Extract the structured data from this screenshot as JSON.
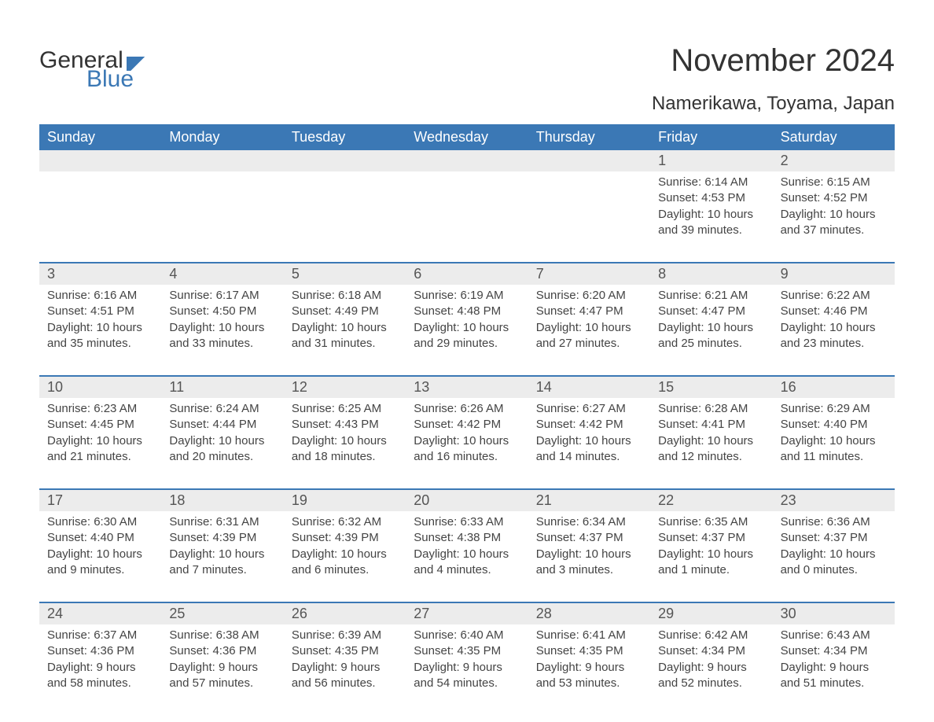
{
  "logo": {
    "part1": "General",
    "part2": "Blue"
  },
  "title": "November 2024",
  "location": "Namerikawa, Toyama, Japan",
  "weekdays": [
    "Sunday",
    "Monday",
    "Tuesday",
    "Wednesday",
    "Thursday",
    "Friday",
    "Saturday"
  ],
  "colors": {
    "header_bg": "#3b78b5",
    "header_text": "#ffffff",
    "daynum_bg": "#ececec",
    "border": "#3b78b5",
    "body_bg": "#ffffff",
    "text": "#333333"
  },
  "weeks": [
    [
      {
        "num": "",
        "lines": []
      },
      {
        "num": "",
        "lines": []
      },
      {
        "num": "",
        "lines": []
      },
      {
        "num": "",
        "lines": []
      },
      {
        "num": "",
        "lines": []
      },
      {
        "num": "1",
        "lines": [
          "Sunrise: 6:14 AM",
          "Sunset: 4:53 PM",
          "Daylight: 10 hours",
          "and 39 minutes."
        ]
      },
      {
        "num": "2",
        "lines": [
          "Sunrise: 6:15 AM",
          "Sunset: 4:52 PM",
          "Daylight: 10 hours",
          "and 37 minutes."
        ]
      }
    ],
    [
      {
        "num": "3",
        "lines": [
          "Sunrise: 6:16 AM",
          "Sunset: 4:51 PM",
          "Daylight: 10 hours",
          "and 35 minutes."
        ]
      },
      {
        "num": "4",
        "lines": [
          "Sunrise: 6:17 AM",
          "Sunset: 4:50 PM",
          "Daylight: 10 hours",
          "and 33 minutes."
        ]
      },
      {
        "num": "5",
        "lines": [
          "Sunrise: 6:18 AM",
          "Sunset: 4:49 PM",
          "Daylight: 10 hours",
          "and 31 minutes."
        ]
      },
      {
        "num": "6",
        "lines": [
          "Sunrise: 6:19 AM",
          "Sunset: 4:48 PM",
          "Daylight: 10 hours",
          "and 29 minutes."
        ]
      },
      {
        "num": "7",
        "lines": [
          "Sunrise: 6:20 AM",
          "Sunset: 4:47 PM",
          "Daylight: 10 hours",
          "and 27 minutes."
        ]
      },
      {
        "num": "8",
        "lines": [
          "Sunrise: 6:21 AM",
          "Sunset: 4:47 PM",
          "Daylight: 10 hours",
          "and 25 minutes."
        ]
      },
      {
        "num": "9",
        "lines": [
          "Sunrise: 6:22 AM",
          "Sunset: 4:46 PM",
          "Daylight: 10 hours",
          "and 23 minutes."
        ]
      }
    ],
    [
      {
        "num": "10",
        "lines": [
          "Sunrise: 6:23 AM",
          "Sunset: 4:45 PM",
          "Daylight: 10 hours",
          "and 21 minutes."
        ]
      },
      {
        "num": "11",
        "lines": [
          "Sunrise: 6:24 AM",
          "Sunset: 4:44 PM",
          "Daylight: 10 hours",
          "and 20 minutes."
        ]
      },
      {
        "num": "12",
        "lines": [
          "Sunrise: 6:25 AM",
          "Sunset: 4:43 PM",
          "Daylight: 10 hours",
          "and 18 minutes."
        ]
      },
      {
        "num": "13",
        "lines": [
          "Sunrise: 6:26 AM",
          "Sunset: 4:42 PM",
          "Daylight: 10 hours",
          "and 16 minutes."
        ]
      },
      {
        "num": "14",
        "lines": [
          "Sunrise: 6:27 AM",
          "Sunset: 4:42 PM",
          "Daylight: 10 hours",
          "and 14 minutes."
        ]
      },
      {
        "num": "15",
        "lines": [
          "Sunrise: 6:28 AM",
          "Sunset: 4:41 PM",
          "Daylight: 10 hours",
          "and 12 minutes."
        ]
      },
      {
        "num": "16",
        "lines": [
          "Sunrise: 6:29 AM",
          "Sunset: 4:40 PM",
          "Daylight: 10 hours",
          "and 11 minutes."
        ]
      }
    ],
    [
      {
        "num": "17",
        "lines": [
          "Sunrise: 6:30 AM",
          "Sunset: 4:40 PM",
          "Daylight: 10 hours",
          "and 9 minutes."
        ]
      },
      {
        "num": "18",
        "lines": [
          "Sunrise: 6:31 AM",
          "Sunset: 4:39 PM",
          "Daylight: 10 hours",
          "and 7 minutes."
        ]
      },
      {
        "num": "19",
        "lines": [
          "Sunrise: 6:32 AM",
          "Sunset: 4:39 PM",
          "Daylight: 10 hours",
          "and 6 minutes."
        ]
      },
      {
        "num": "20",
        "lines": [
          "Sunrise: 6:33 AM",
          "Sunset: 4:38 PM",
          "Daylight: 10 hours",
          "and 4 minutes."
        ]
      },
      {
        "num": "21",
        "lines": [
          "Sunrise: 6:34 AM",
          "Sunset: 4:37 PM",
          "Daylight: 10 hours",
          "and 3 minutes."
        ]
      },
      {
        "num": "22",
        "lines": [
          "Sunrise: 6:35 AM",
          "Sunset: 4:37 PM",
          "Daylight: 10 hours",
          "and 1 minute."
        ]
      },
      {
        "num": "23",
        "lines": [
          "Sunrise: 6:36 AM",
          "Sunset: 4:37 PM",
          "Daylight: 10 hours",
          "and 0 minutes."
        ]
      }
    ],
    [
      {
        "num": "24",
        "lines": [
          "Sunrise: 6:37 AM",
          "Sunset: 4:36 PM",
          "Daylight: 9 hours",
          "and 58 minutes."
        ]
      },
      {
        "num": "25",
        "lines": [
          "Sunrise: 6:38 AM",
          "Sunset: 4:36 PM",
          "Daylight: 9 hours",
          "and 57 minutes."
        ]
      },
      {
        "num": "26",
        "lines": [
          "Sunrise: 6:39 AM",
          "Sunset: 4:35 PM",
          "Daylight: 9 hours",
          "and 56 minutes."
        ]
      },
      {
        "num": "27",
        "lines": [
          "Sunrise: 6:40 AM",
          "Sunset: 4:35 PM",
          "Daylight: 9 hours",
          "and 54 minutes."
        ]
      },
      {
        "num": "28",
        "lines": [
          "Sunrise: 6:41 AM",
          "Sunset: 4:35 PM",
          "Daylight: 9 hours",
          "and 53 minutes."
        ]
      },
      {
        "num": "29",
        "lines": [
          "Sunrise: 6:42 AM",
          "Sunset: 4:34 PM",
          "Daylight: 9 hours",
          "and 52 minutes."
        ]
      },
      {
        "num": "30",
        "lines": [
          "Sunrise: 6:43 AM",
          "Sunset: 4:34 PM",
          "Daylight: 9 hours",
          "and 51 minutes."
        ]
      }
    ]
  ]
}
